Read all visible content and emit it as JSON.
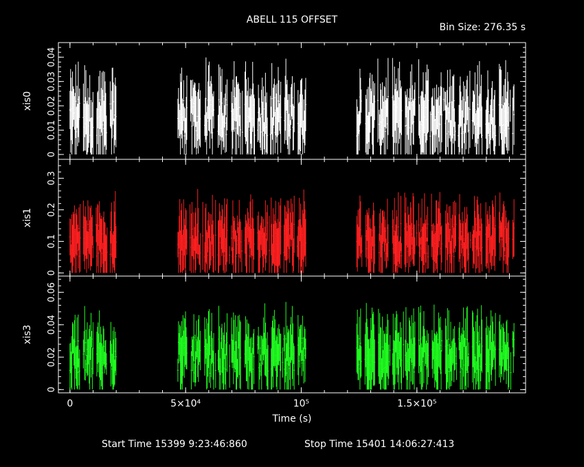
{
  "title": "ABELL 115 OFFSET",
  "bin_size": "Bin Size: 276.35 s",
  "footer": {
    "start": "Start Time 15399  9:23:46:860",
    "stop": "Stop Time 15401 14:06:27:413"
  },
  "chart_data": {
    "type": "line",
    "title": "ABELL 115 OFFSET",
    "xlabel": "Time (s)",
    "xlim": [
      -5000,
      197000
    ],
    "x_ticks": [
      {
        "value": 0,
        "label": "0"
      },
      {
        "value": 50000,
        "label": "5×10⁴"
      },
      {
        "value": 100000,
        "label": "10⁵"
      },
      {
        "value": 150000,
        "label": "1.5×10⁵"
      }
    ],
    "gaps": [
      [
        20000,
        45000
      ],
      [
        102000,
        124000
      ]
    ],
    "observed_ranges": [
      [
        0,
        20000
      ],
      [
        45000,
        102000
      ],
      [
        124000,
        192000
      ]
    ],
    "panels": [
      {
        "name": "xis0",
        "color": "#ffffff",
        "ylim": [
          -0.002,
          0.046
        ],
        "y_ticks": [
          {
            "value": 0,
            "label": "0"
          },
          {
            "value": 0.01,
            "label": "0.01"
          },
          {
            "value": 0.02,
            "label": "0.02"
          },
          {
            "value": 0.03,
            "label": "0.03"
          },
          {
            "value": 0.04,
            "label": "0.04"
          }
        ],
        "typical_rate": 0.015,
        "max_rate": 0.045
      },
      {
        "name": "xis1",
        "color": "#ff2020",
        "ylim": [
          -0.01,
          0.36
        ],
        "y_ticks": [
          {
            "value": 0,
            "label": "0"
          },
          {
            "value": 0.1,
            "label": "0.1"
          },
          {
            "value": 0.2,
            "label": "0.2"
          },
          {
            "value": 0.3,
            "label": "0.3"
          }
        ],
        "typical_rate": 0.1,
        "max_rate": 0.34
      },
      {
        "name": "xis3",
        "color": "#20ff20",
        "ylim": [
          -0.002,
          0.07
        ],
        "y_ticks": [
          {
            "value": 0,
            "label": "0"
          },
          {
            "value": 0.02,
            "label": "0.02"
          },
          {
            "value": 0.04,
            "label": "0.04"
          },
          {
            "value": 0.06,
            "label": "0.06"
          }
        ],
        "typical_rate": 0.02,
        "max_rate": 0.068
      }
    ]
  }
}
